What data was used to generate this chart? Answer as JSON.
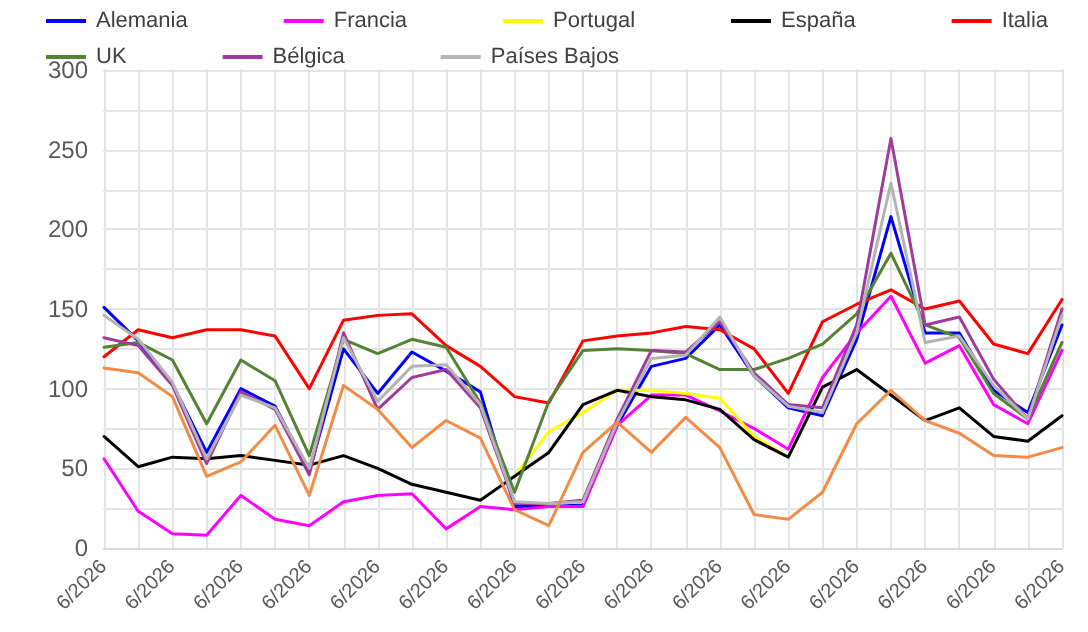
{
  "chart_data": {
    "type": "line",
    "categories": [
      "6/2026",
      null,
      "6/2026",
      null,
      "6/2026",
      null,
      "6/2026",
      null,
      "6/2026",
      null,
      "6/2026",
      null,
      "6/2026",
      null,
      "6/2026",
      null,
      "6/2026",
      null,
      "6/2026",
      null,
      "6/2026",
      null,
      "6/2026",
      null,
      "6/2026",
      null,
      "6/2026",
      null,
      "6/2026"
    ],
    "series": [
      {
        "name": "Alemania",
        "color": "#0000ff",
        "values": [
          151,
          130,
          103,
          60,
          100,
          89,
          48,
          125,
          97,
          123,
          111,
          98,
          26,
          26,
          27,
          77,
          114,
          119,
          140,
          108,
          88,
          83,
          131,
          208,
          135,
          135,
          99,
          85,
          140
        ]
      },
      {
        "name": "Francia",
        "color": "#ff00ff",
        "values": [
          56,
          23,
          9,
          8,
          33,
          18,
          14,
          29,
          33,
          34,
          12,
          26,
          24,
          26,
          26,
          77,
          96,
          96,
          86,
          75,
          62,
          107,
          135,
          158,
          116,
          127,
          90,
          78,
          124
        ]
      },
      {
        "name": "Portugal",
        "color": "#ffff00",
        "values": [
          null,
          null,
          null,
          null,
          null,
          null,
          null,
          null,
          null,
          null,
          null,
          null,
          45,
          73,
          85,
          99,
          99,
          97,
          94,
          70,
          57,
          null,
          null,
          null,
          null,
          null,
          null,
          null,
          null
        ]
      },
      {
        "name": "España",
        "color": "#000000",
        "values": [
          70,
          51,
          57,
          56,
          58,
          55,
          52,
          58,
          50,
          40,
          35,
          30,
          45,
          60,
          90,
          99,
          95,
          93,
          87,
          68,
          57,
          101,
          112,
          96,
          80,
          88,
          70,
          67,
          83
        ]
      },
      {
        "name": "Italia",
        "color": "#ff0000",
        "values": [
          120,
          137,
          132,
          137,
          137,
          133,
          100,
          143,
          146,
          147,
          127,
          114,
          95,
          91,
          130,
          133,
          135,
          139,
          137,
          125,
          97,
          142,
          153,
          162,
          150,
          155,
          128,
          122,
          156
        ]
      },
      {
        "name": "UK",
        "color": "#548235",
        "values": [
          126,
          129,
          118,
          78,
          118,
          105,
          58,
          131,
          122,
          131,
          126,
          91,
          35,
          92,
          124,
          125,
          124,
          122,
          112,
          112,
          119,
          128,
          147,
          185,
          140,
          132,
          97,
          81,
          129
        ]
      },
      {
        "name": "Bélgica",
        "color": "#9e3c9e",
        "values": [
          132,
          127,
          102,
          53,
          98,
          87,
          46,
          135,
          87,
          107,
          112,
          88,
          28,
          28,
          30,
          81,
          124,
          123,
          142,
          110,
          90,
          88,
          140,
          257,
          140,
          145,
          106,
          81,
          150
        ]
      },
      {
        "name": "Países Bajos",
        "color": "#b4b4b4",
        "values": [
          146,
          131,
          104,
          56,
          96,
          88,
          50,
          132,
          92,
          114,
          115,
          90,
          29,
          28,
          29,
          79,
          119,
          121,
          145,
          108,
          89,
          85,
          135,
          229,
          129,
          133,
          102,
          81,
          146
        ]
      },
      {
        "color": "#f08c46",
        "values": [
          113,
          110,
          95,
          45,
          54,
          77,
          33,
          102,
          87,
          63,
          80,
          69,
          24,
          14,
          60,
          79,
          60,
          82,
          63,
          21,
          18,
          35,
          78,
          99,
          80,
          72,
          58,
          57,
          63
        ]
      }
    ],
    "ylim": [
      0,
      300
    ],
    "yticks": [
      0,
      {
        "value": 25,
        "label": null
      },
      50,
      {
        "value": 75,
        "label": null
      },
      100,
      {
        "value": 125,
        "label": null
      },
      150,
      {
        "value": 175,
        "label": null
      },
      200,
      {
        "value": 225,
        "label": null
      },
      250,
      {
        "value": 275,
        "label": null
      },
      300
    ],
    "grid": true,
    "legend": "top",
    "marker": "none",
    "line_style": "solid"
  }
}
